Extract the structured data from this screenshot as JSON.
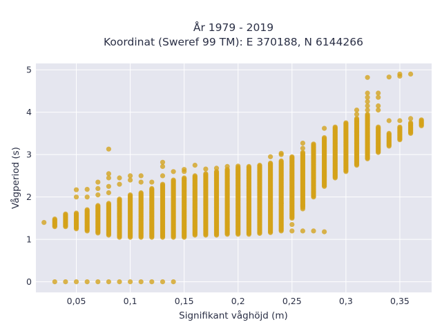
{
  "chart_data": {
    "type": "scatter",
    "title_lines": [
      "År 1979 - 2019",
      "Koordinat (Sweref 99 TM): E 370188, N 6144266"
    ],
    "xlabel": "Signifikant våghöjd (m)",
    "ylabel": "Vågperiod (s)",
    "xlim": [
      0.0125,
      0.3795
    ],
    "ylim": [
      -0.25,
      5.15
    ],
    "x_ticks": [
      0.05,
      0.1,
      0.15,
      0.2,
      0.25,
      0.3,
      0.35
    ],
    "x_tick_labels": [
      "0,05",
      "0,1",
      "0,15",
      "0,2",
      "0,25",
      "0,3",
      "0,35"
    ],
    "y_ticks": [
      0,
      1,
      2,
      3,
      4,
      5
    ],
    "y_tick_labels": [
      "0",
      "1",
      "2",
      "3",
      "4",
      "5"
    ],
    "grid": true,
    "colors": {
      "points": "#d4a21a",
      "plot_bg": "#e5e6ef",
      "grid": "#ffffff"
    },
    "columns": [
      {
        "x": 0.02,
        "y_min": 1.4,
        "y_max": 1.4
      },
      {
        "x": 0.03,
        "y_min": 1.3,
        "y_max": 1.48
      },
      {
        "x": 0.04,
        "y_min": 1.3,
        "y_max": 1.6
      },
      {
        "x": 0.05,
        "y_min": 1.25,
        "y_max": 1.62
      },
      {
        "x": 0.06,
        "y_min": 1.2,
        "y_max": 1.7
      },
      {
        "x": 0.07,
        "y_min": 1.15,
        "y_max": 1.8
      },
      {
        "x": 0.08,
        "y_min": 1.1,
        "y_max": 1.85
      },
      {
        "x": 0.09,
        "y_min": 1.05,
        "y_max": 1.95
      },
      {
        "x": 0.1,
        "y_min": 1.05,
        "y_max": 2.05
      },
      {
        "x": 0.11,
        "y_min": 1.05,
        "y_max": 2.1
      },
      {
        "x": 0.12,
        "y_min": 1.05,
        "y_max": 2.2
      },
      {
        "x": 0.13,
        "y_min": 1.05,
        "y_max": 2.3
      },
      {
        "x": 0.14,
        "y_min": 1.05,
        "y_max": 2.4
      },
      {
        "x": 0.15,
        "y_min": 1.05,
        "y_max": 2.45
      },
      {
        "x": 0.16,
        "y_min": 1.1,
        "y_max": 2.5
      },
      {
        "x": 0.17,
        "y_min": 1.1,
        "y_max": 2.55
      },
      {
        "x": 0.18,
        "y_min": 1.1,
        "y_max": 2.6
      },
      {
        "x": 0.19,
        "y_min": 1.12,
        "y_max": 2.65
      },
      {
        "x": 0.2,
        "y_min": 1.12,
        "y_max": 2.7
      },
      {
        "x": 0.21,
        "y_min": 1.12,
        "y_max": 2.72
      },
      {
        "x": 0.22,
        "y_min": 1.14,
        "y_max": 2.75
      },
      {
        "x": 0.23,
        "y_min": 1.16,
        "y_max": 2.8
      },
      {
        "x": 0.24,
        "y_min": 1.2,
        "y_max": 2.85
      },
      {
        "x": 0.25,
        "y_min": 1.5,
        "y_max": 2.95
      },
      {
        "x": 0.26,
        "y_min": 1.75,
        "y_max": 3.05
      },
      {
        "x": 0.27,
        "y_min": 2.0,
        "y_max": 3.25
      },
      {
        "x": 0.28,
        "y_min": 2.25,
        "y_max": 3.4
      },
      {
        "x": 0.29,
        "y_min": 2.45,
        "y_max": 3.65
      },
      {
        "x": 0.3,
        "y_min": 2.6,
        "y_max": 3.75
      },
      {
        "x": 0.31,
        "y_min": 2.75,
        "y_max": 3.85
      },
      {
        "x": 0.32,
        "y_min": 2.9,
        "y_max": 3.95
      },
      {
        "x": 0.33,
        "y_min": 3.05,
        "y_max": 3.65
      },
      {
        "x": 0.34,
        "y_min": 3.2,
        "y_max": 3.5
      },
      {
        "x": 0.35,
        "y_min": 3.35,
        "y_max": 3.65
      },
      {
        "x": 0.36,
        "y_min": 3.5,
        "y_max": 3.75
      },
      {
        "x": 0.37,
        "y_min": 3.68,
        "y_max": 3.82
      }
    ],
    "points": [
      {
        "x": 0.03,
        "y": 0
      },
      {
        "x": 0.04,
        "y": 0
      },
      {
        "x": 0.05,
        "y": 0
      },
      {
        "x": 0.06,
        "y": 0
      },
      {
        "x": 0.07,
        "y": 0
      },
      {
        "x": 0.08,
        "y": 0
      },
      {
        "x": 0.09,
        "y": 0
      },
      {
        "x": 0.1,
        "y": 0
      },
      {
        "x": 0.11,
        "y": 0
      },
      {
        "x": 0.12,
        "y": 0
      },
      {
        "x": 0.13,
        "y": 0
      },
      {
        "x": 0.14,
        "y": 0
      },
      {
        "x": 0.05,
        "y": 2.0
      },
      {
        "x": 0.05,
        "y": 2.17
      },
      {
        "x": 0.06,
        "y": 2.18
      },
      {
        "x": 0.06,
        "y": 2.0
      },
      {
        "x": 0.07,
        "y": 2.35
      },
      {
        "x": 0.07,
        "y": 2.2
      },
      {
        "x": 0.07,
        "y": 2.05
      },
      {
        "x": 0.08,
        "y": 3.13
      },
      {
        "x": 0.08,
        "y": 2.55
      },
      {
        "x": 0.08,
        "y": 2.45
      },
      {
        "x": 0.08,
        "y": 2.25
      },
      {
        "x": 0.08,
        "y": 2.1
      },
      {
        "x": 0.09,
        "y": 2.45
      },
      {
        "x": 0.09,
        "y": 2.3
      },
      {
        "x": 0.09,
        "y": 1.6
      },
      {
        "x": 0.09,
        "y": 1.9
      },
      {
        "x": 0.1,
        "y": 2.5
      },
      {
        "x": 0.1,
        "y": 2.4
      },
      {
        "x": 0.11,
        "y": 2.5
      },
      {
        "x": 0.11,
        "y": 2.35
      },
      {
        "x": 0.12,
        "y": 2.35
      },
      {
        "x": 0.13,
        "y": 2.82
      },
      {
        "x": 0.13,
        "y": 2.72
      },
      {
        "x": 0.13,
        "y": 2.5
      },
      {
        "x": 0.14,
        "y": 2.6
      },
      {
        "x": 0.15,
        "y": 2.6
      },
      {
        "x": 0.15,
        "y": 2.65
      },
      {
        "x": 0.16,
        "y": 2.75
      },
      {
        "x": 0.17,
        "y": 2.66
      },
      {
        "x": 0.18,
        "y": 2.68
      },
      {
        "x": 0.19,
        "y": 2.72
      },
      {
        "x": 0.2,
        "y": 2.73
      },
      {
        "x": 0.23,
        "y": 2.95
      },
      {
        "x": 0.24,
        "y": 3.03
      },
      {
        "x": 0.24,
        "y": 3.0
      },
      {
        "x": 0.24,
        "y": 1.85
      },
      {
        "x": 0.25,
        "y": 1.35
      },
      {
        "x": 0.25,
        "y": 1.2
      },
      {
        "x": 0.26,
        "y": 1.2
      },
      {
        "x": 0.26,
        "y": 1.72
      },
      {
        "x": 0.26,
        "y": 1.8
      },
      {
        "x": 0.26,
        "y": 3.27
      },
      {
        "x": 0.26,
        "y": 3.15
      },
      {
        "x": 0.27,
        "y": 1.2
      },
      {
        "x": 0.28,
        "y": 1.18
      },
      {
        "x": 0.28,
        "y": 3.62
      },
      {
        "x": 0.31,
        "y": 4.05
      },
      {
        "x": 0.31,
        "y": 3.95
      },
      {
        "x": 0.31,
        "y": 3.55
      },
      {
        "x": 0.31,
        "y": 3.45
      },
      {
        "x": 0.32,
        "y": 4.82
      },
      {
        "x": 0.32,
        "y": 4.45
      },
      {
        "x": 0.32,
        "y": 4.35
      },
      {
        "x": 0.32,
        "y": 4.25
      },
      {
        "x": 0.32,
        "y": 4.15
      },
      {
        "x": 0.32,
        "y": 4.05
      },
      {
        "x": 0.33,
        "y": 4.45
      },
      {
        "x": 0.33,
        "y": 4.35
      },
      {
        "x": 0.33,
        "y": 4.15
      },
      {
        "x": 0.33,
        "y": 4.05
      },
      {
        "x": 0.34,
        "y": 4.83
      },
      {
        "x": 0.34,
        "y": 3.8
      },
      {
        "x": 0.35,
        "y": 4.9
      },
      {
        "x": 0.35,
        "y": 4.85
      },
      {
        "x": 0.35,
        "y": 3.8
      },
      {
        "x": 0.36,
        "y": 4.9
      },
      {
        "x": 0.36,
        "y": 3.85
      }
    ]
  }
}
